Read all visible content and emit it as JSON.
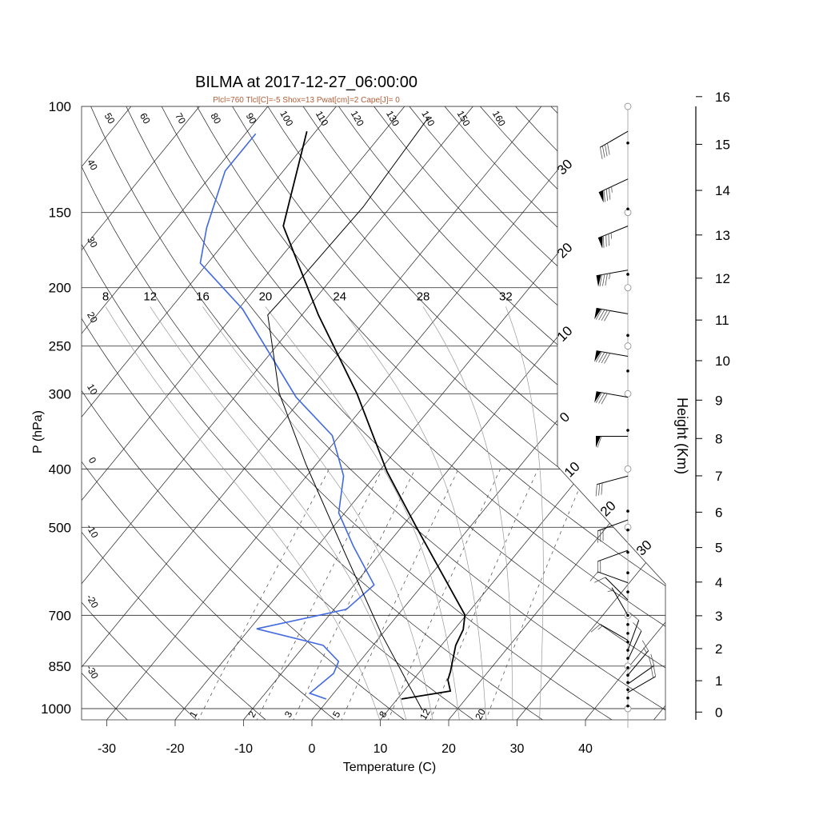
{
  "chart_data": {
    "type": "line",
    "title": "BILMA at 2017-12-27_06:00:00",
    "subtitle": "Plcl=760 Tlcl[C]=-5 Shox=13 Pwat[cm]=2 Cape[J]= 0",
    "xlabel": "Temperature (C)",
    "ylabel": "P (hPa)",
    "y2label": "Height (Km)",
    "xlim": [
      -34,
      50
    ],
    "ylim": [
      1044,
      100
    ],
    "temperature_ticks": [
      "-30",
      "-20",
      "-10",
      "0",
      "10",
      "20",
      "30",
      "40"
    ],
    "pressure_ticks": [
      "100",
      "150",
      "200",
      "250",
      "300",
      "400",
      "500",
      "700",
      "850",
      "1000"
    ],
    "height_ticks_km": [
      "0",
      "1",
      "2",
      "3",
      "4",
      "5",
      "6",
      "7",
      "8",
      "9",
      "10",
      "11",
      "12",
      "13",
      "14",
      "15",
      "16"
    ],
    "isotherm_labels": [
      "30",
      "20",
      "10",
      "0",
      "10",
      "20",
      "30"
    ],
    "isotherm_label_values": [
      -30,
      -20,
      -10,
      0,
      10,
      20,
      30
    ],
    "dry_adiabat_left_labels": [
      "40",
      "30",
      "20",
      "10",
      "0",
      "-10",
      "-20",
      "-30"
    ],
    "dry_adiabat_top_labels": [
      "50",
      "60",
      "70",
      "80",
      "90",
      "100",
      "110",
      "120",
      "130",
      "140",
      "150",
      "160"
    ],
    "moist_adiabat_labels": [
      "8",
      "12",
      "16",
      "20",
      "24",
      "28",
      "32"
    ],
    "mixing_ratio_labels": [
      "1",
      "2",
      "3",
      "5",
      "8",
      "12",
      "20"
    ],
    "series": [
      {
        "name": "temperature",
        "color": "#000000",
        "p": [
          964,
          935,
          896,
          869,
          785,
          739,
          699,
          589,
          497,
          404,
          300,
          222,
          158,
          110
        ],
        "t": [
          10.6,
          16.8,
          15.1,
          14.5,
          12.1,
          11.3,
          9.8,
          0.8,
          -8.1,
          -18.8,
          -32.5,
          -47.6,
          -63.4,
          -71.3
        ]
      },
      {
        "name": "dewpoint",
        "color": "#4169e1",
        "p": [
          964,
          943,
          874,
          835,
          785,
          737,
          684,
          623,
          538,
          473,
          411,
          352,
          304,
          217,
          182,
          159,
          128,
          111
        ],
        "t": [
          -0.4,
          -3.5,
          -2.4,
          -3.1,
          -7.3,
          -19.0,
          -8.2,
          -7.1,
          -14.7,
          -20.9,
          -24.6,
          -31.1,
          -41.0,
          -59.4,
          -71.1,
          -74.4,
          -78.5,
          -78.5
        ]
      },
      {
        "name": "parcel",
        "color": "#000000",
        "p": [
          1006,
          752,
          549,
          393,
          299,
          222,
          191,
          147,
          104
        ],
        "t": [
          15.0,
          -0.1,
          -15.4,
          -31.5,
          -44.0,
          -55.0,
          -54.5,
          -54.0,
          -55.2
        ]
      }
    ],
    "wind_barbs": [
      {
        "p": 110,
        "dir": 240,
        "spd": 40
      },
      {
        "p": 132,
        "dir": 245,
        "spd": 85
      },
      {
        "p": 158,
        "dir": 248,
        "spd": 85
      },
      {
        "p": 187,
        "dir": 260,
        "spd": 85
      },
      {
        "p": 221,
        "dir": 280,
        "spd": 90
      },
      {
        "p": 260,
        "dir": 280,
        "spd": 90
      },
      {
        "p": 304,
        "dir": 280,
        "spd": 80
      },
      {
        "p": 353,
        "dir": 270,
        "spd": 60
      },
      {
        "p": 411,
        "dir": 255,
        "spd": 30
      },
      {
        "p": 486,
        "dir": 250,
        "spd": 30
      },
      {
        "p": 546,
        "dir": 250,
        "spd": 20
      },
      {
        "p": 618,
        "dir": 290,
        "spd": 10
      },
      {
        "p": 660,
        "dir": 315,
        "spd": 10
      },
      {
        "p": 700,
        "dir": 330,
        "spd": 5
      },
      {
        "p": 770,
        "dir": 300,
        "spd": 15
      },
      {
        "p": 800,
        "dir": 20,
        "spd": 10
      },
      {
        "p": 830,
        "dir": 25,
        "spd": 10
      },
      {
        "p": 880,
        "dir": 40,
        "spd": 15
      },
      {
        "p": 910,
        "dir": 55,
        "spd": 20
      },
      {
        "p": 940,
        "dir": 60,
        "spd": 20
      }
    ],
    "wind_dot_pressures": [
      115,
      148,
      190,
      240,
      275,
      345,
      470,
      505,
      550,
      595,
      640,
      700,
      725,
      750,
      775,
      800,
      825,
      855,
      880,
      905,
      930,
      960,
      990
    ],
    "standard_level_circles": [
      100,
      150,
      200,
      250,
      300,
      400,
      500,
      700,
      850,
      1000
    ]
  }
}
